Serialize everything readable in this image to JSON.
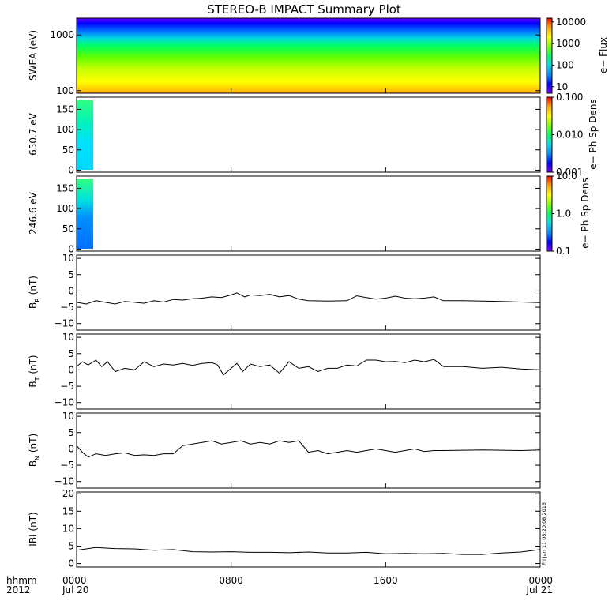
{
  "title": "STEREO-B IMPACT Summary Plot",
  "stamp": "Fri Jan 11 05:20:08 2013",
  "x_axis": {
    "label_line1": "hhmm",
    "label_line2": "2012",
    "ticks": [
      {
        "hours": 0,
        "label": "0000",
        "sub": "Jul 20"
      },
      {
        "hours": 8,
        "label": "0800",
        "sub": ""
      },
      {
        "hours": 16,
        "label": "1600",
        "sub": ""
      },
      {
        "hours": 24,
        "label": "0000",
        "sub": "Jul 21"
      }
    ],
    "range_hours": [
      0,
      24
    ]
  },
  "colors": {
    "spectrogram_scale": [
      "#8000ff",
      "#0000ff",
      "#0090ff",
      "#00e0e0",
      "#00ff60",
      "#80ff00",
      "#ffff00",
      "#ffa000",
      "#ff0000"
    ],
    "line": "#000000",
    "frame": "#000000"
  },
  "panels": {
    "swea": {
      "ylabel": "SWEA (eV)",
      "yscale": "log",
      "ylim": [
        90,
        2000
      ],
      "yticks": [
        {
          "v": 100,
          "label": "100"
        },
        {
          "v": 1000,
          "label": "1000"
        }
      ],
      "colorbar": {
        "label": "e− Flux",
        "scale": "log",
        "range": [
          5,
          15000
        ],
        "ticks": [
          {
            "v": 10,
            "label": "10"
          },
          {
            "v": 100,
            "label": "100"
          },
          {
            "v": 1000,
            "label": "1000"
          },
          {
            "v": 10000,
            "label": "10000"
          }
        ]
      }
    },
    "pad650": {
      "ylabel": "650.7 eV",
      "ylim": [
        -5,
        180
      ],
      "yticks": [
        {
          "v": 0,
          "label": "0"
        },
        {
          "v": 50,
          "label": "50"
        },
        {
          "v": 100,
          "label": "100"
        },
        {
          "v": 150,
          "label": "150"
        }
      ],
      "colorbar": {
        "label": "e− Ph Sp Dens",
        "scale": "log",
        "range": [
          0.001,
          0.1
        ],
        "ticks": [
          {
            "v": 0.001,
            "label": "0.001"
          },
          {
            "v": 0.01,
            "label": "0.010"
          },
          {
            "v": 0.1,
            "label": "0.100"
          }
        ]
      }
    },
    "pad246": {
      "ylabel": "246.6 eV",
      "ylim": [
        -5,
        180
      ],
      "yticks": [
        {
          "v": 0,
          "label": "0"
        },
        {
          "v": 50,
          "label": "50"
        },
        {
          "v": 100,
          "label": "100"
        },
        {
          "v": 150,
          "label": "150"
        }
      ],
      "colorbar": {
        "label": "e− Ph Sp Dens",
        "scale": "log",
        "range": [
          0.1,
          10
        ],
        "ticks": [
          {
            "v": 0.1,
            "label": "0.1"
          },
          {
            "v": 1,
            "label": "1.0"
          },
          {
            "v": 10,
            "label": "10.0"
          }
        ]
      }
    },
    "br": {
      "ylabel": "B",
      "ysub": "R",
      "yunit": " (nT)",
      "ylim": [
        -12,
        11
      ],
      "yticks": [
        {
          "v": -10,
          "label": "−10"
        },
        {
          "v": -5,
          "label": "−5"
        },
        {
          "v": 0,
          "label": "0"
        },
        {
          "v": 5,
          "label": "5"
        },
        {
          "v": 10,
          "label": "10"
        }
      ]
    },
    "bt": {
      "ylabel": "B",
      "ysub": "T",
      "yunit": " (nT)",
      "ylim": [
        -12,
        11
      ],
      "yticks": [
        {
          "v": -10,
          "label": "−10"
        },
        {
          "v": -5,
          "label": "−5"
        },
        {
          "v": 0,
          "label": "0"
        },
        {
          "v": 5,
          "label": "5"
        },
        {
          "v": 10,
          "label": "10"
        }
      ]
    },
    "bn": {
      "ylabel": "B",
      "ysub": "N",
      "yunit": " (nT)",
      "ylim": [
        -12,
        11
      ],
      "yticks": [
        {
          "v": -10,
          "label": "−10"
        },
        {
          "v": -5,
          "label": "−5"
        },
        {
          "v": 0,
          "label": "0"
        },
        {
          "v": 5,
          "label": "5"
        },
        {
          "v": 10,
          "label": "10"
        }
      ]
    },
    "bmag": {
      "ylabel": "IBI (nT)",
      "ylim": [
        -1,
        20.5
      ],
      "yticks": [
        {
          "v": 0,
          "label": "0"
        },
        {
          "v": 5,
          "label": "5"
        },
        {
          "v": 10,
          "label": "10"
        },
        {
          "v": 15,
          "label": "15"
        },
        {
          "v": 20,
          "label": "20"
        }
      ]
    }
  },
  "chart_data": [
    {
      "type": "heatmap",
      "title": "STEREO-B IMPACT Summary Plot",
      "ylabel": "SWEA (eV)",
      "colorbar_label": "e− Flux",
      "x_hours": [
        0,
        24
      ],
      "energy_eV": [
        2000,
        1500,
        1200,
        1000,
        800,
        600,
        450,
        350,
        250,
        180,
        130,
        100,
        90
      ],
      "flux": [
        5,
        10,
        30,
        100,
        300,
        700,
        1200,
        1800,
        2500,
        3500,
        4500,
        6000,
        9000
      ]
    },
    {
      "type": "heatmap",
      "ylabel": "650.7 eV",
      "colorbar_label": "e− Ph Sp Dens",
      "x_hours": [
        0,
        0.9
      ],
      "pitch_angle_deg": [
        175,
        150,
        125,
        100,
        75,
        50,
        25,
        0
      ],
      "phase_space_density": [
        0.012,
        0.011,
        0.008,
        0.006,
        0.006,
        0.005,
        0.005,
        0.005
      ]
    },
    {
      "type": "heatmap",
      "ylabel": "246.6 eV",
      "colorbar_label": "e− Ph Sp Dens",
      "x_hours": [
        0,
        0.9
      ],
      "pitch_angle_deg": [
        175,
        150,
        125,
        100,
        75,
        50,
        25,
        0
      ],
      "phase_space_density": [
        2.5,
        2.0,
        1.4,
        0.9,
        0.6,
        0.5,
        0.45,
        0.45
      ]
    },
    {
      "type": "line",
      "ylabel": "BR (nT)",
      "ylim": [
        -12,
        11
      ],
      "x": [
        0,
        0.5,
        1,
        1.5,
        2,
        2.5,
        3,
        3.5,
        4,
        4.5,
        5,
        5.5,
        6,
        6.5,
        7,
        7.5,
        8,
        8.3,
        8.7,
        9,
        9.5,
        10,
        10.5,
        11,
        11.5,
        12,
        13,
        14,
        14.5,
        15,
        15.5,
        16,
        16.5,
        17,
        17.5,
        18,
        18.5,
        19,
        20,
        21,
        22,
        23,
        24
      ],
      "y": [
        -3.5,
        -4,
        -3,
        -3.5,
        -4,
        -3.2,
        -3.5,
        -3.8,
        -3,
        -3.4,
        -2.6,
        -2.8,
        -2.4,
        -2.2,
        -1.8,
        -2,
        -1.2,
        -0.6,
        -1.8,
        -1.2,
        -1.4,
        -1,
        -1.8,
        -1.4,
        -2.5,
        -3,
        -3.1,
        -3,
        -1.5,
        -2,
        -2.5,
        -2.2,
        -1.6,
        -2.2,
        -2.4,
        -2.2,
        -1.8,
        -3,
        -3,
        -3.1,
        -3.2,
        -3.4,
        -3.6
      ]
    },
    {
      "type": "line",
      "ylabel": "BT (nT)",
      "ylim": [
        -12,
        11
      ],
      "x": [
        0,
        0.3,
        0.6,
        1,
        1.3,
        1.6,
        2,
        2.5,
        3,
        3.5,
        4,
        4.5,
        5,
        5.5,
        6,
        6.5,
        7,
        7.3,
        7.6,
        8,
        8.3,
        8.6,
        9,
        9.5,
        10,
        10.5,
        11,
        11.5,
        12,
        12.5,
        13,
        13.5,
        14,
        14.5,
        15,
        15.5,
        16,
        16.5,
        17,
        17.5,
        18,
        18.5,
        19,
        20,
        21,
        22,
        23,
        24
      ],
      "y": [
        1,
        2.5,
        1.5,
        3,
        1,
        2.5,
        -0.5,
        0.5,
        0,
        2.5,
        1,
        1.8,
        1.5,
        2,
        1.4,
        2,
        2.2,
        1.5,
        -1.5,
        0.5,
        2,
        -0.5,
        1.8,
        1,
        1.5,
        -1,
        2.5,
        0.5,
        1,
        -0.5,
        0.5,
        0.5,
        1.5,
        1.2,
        3,
        3,
        2.5,
        2.6,
        2.2,
        3,
        2.5,
        3.2,
        1,
        1,
        0.5,
        0.8,
        0.3,
        0
      ]
    },
    {
      "type": "line",
      "ylabel": "BN (nT)",
      "ylim": [
        -12,
        11
      ],
      "x": [
        0,
        0.3,
        0.6,
        1,
        1.5,
        2,
        2.5,
        3,
        3.5,
        4,
        4.5,
        5,
        5.5,
        6,
        6.5,
        7,
        7.5,
        8,
        8.5,
        9,
        9.5,
        10,
        10.5,
        11,
        11.5,
        12,
        12.5,
        13,
        13.5,
        14,
        14.5,
        15,
        15.5,
        16,
        16.5,
        17,
        17.5,
        18,
        18.5,
        19,
        20,
        21,
        22,
        23,
        24
      ],
      "y": [
        1,
        -1,
        -2.5,
        -1.5,
        -2,
        -1.5,
        -1.2,
        -2,
        -1.8,
        -2,
        -1.5,
        -1.5,
        1,
        1.5,
        2,
        2.5,
        1.5,
        2,
        2.5,
        1.5,
        2,
        1.5,
        2.5,
        2,
        2.5,
        -1,
        -0.5,
        -1.5,
        -1,
        -0.5,
        -1,
        -0.5,
        0,
        -0.5,
        -1,
        -0.5,
        0,
        -0.8,
        -0.5,
        -0.5,
        -0.4,
        -0.3,
        -0.4,
        -0.5,
        -0.3
      ]
    },
    {
      "type": "line",
      "ylabel": "IBI (nT)",
      "ylim": [
        -1,
        20.5
      ],
      "x": [
        0,
        1,
        2,
        3,
        4,
        5,
        6,
        7,
        8,
        9,
        10,
        11,
        12,
        13,
        14,
        15,
        16,
        17,
        18,
        19,
        20,
        21,
        22,
        23,
        24
      ],
      "y": [
        3.8,
        4.6,
        4.3,
        4.2,
        3.8,
        4,
        3.4,
        3.3,
        3.4,
        3.2,
        3.2,
        3.1,
        3.3,
        3,
        3,
        3.2,
        2.8,
        2.9,
        2.8,
        2.9,
        2.6,
        2.6,
        3,
        3.3,
        4
      ]
    }
  ]
}
